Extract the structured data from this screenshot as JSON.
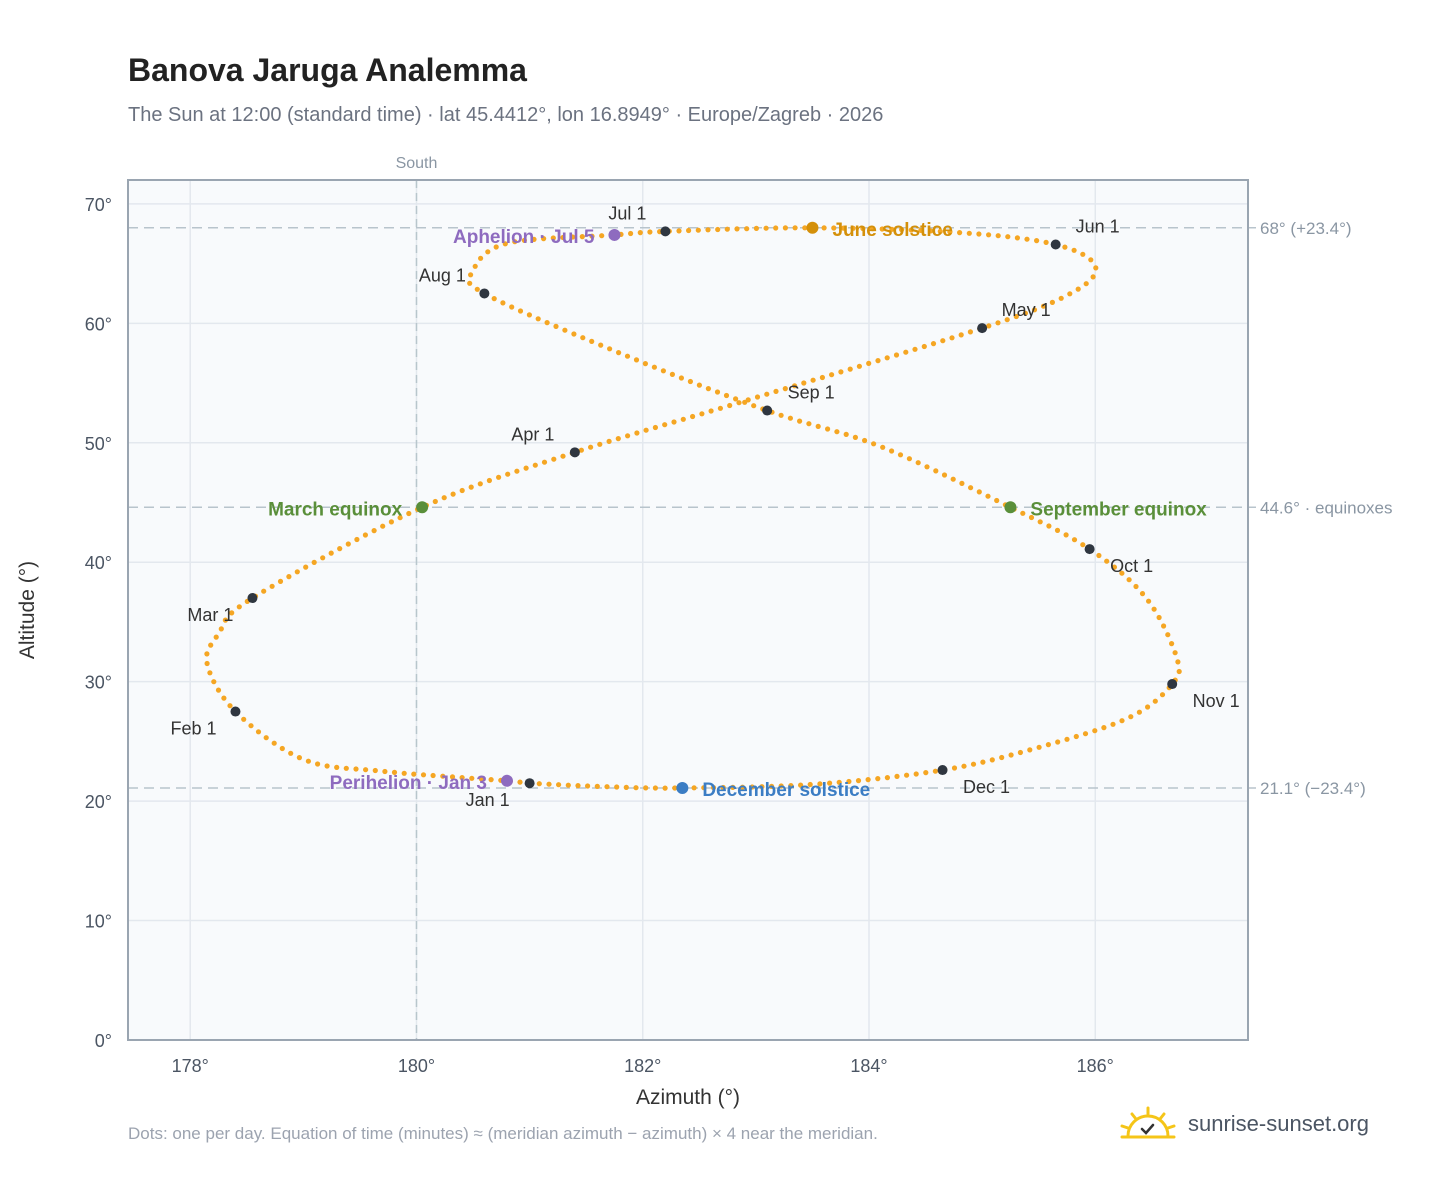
{
  "title": "Banova Jaruga Analemma",
  "subtitle": "The Sun at 12:00 (standard time) · lat 45.4412°, lon 16.8949° · Europe/Zagreb · 2026",
  "footer": "Dots: one per day. Equation of time (minutes) ≈ (meridian azimuth − azimuth) × 4 near the meridian.",
  "brand": {
    "name": "sunrise-sunset.org",
    "icon": "sun-logo-icon"
  },
  "chart_data": {
    "type": "scatter",
    "title": "Banova Jaruga Analemma",
    "xlabel": "Azimuth (°)",
    "ylabel": "Altitude (°)",
    "xlim": [
      177.45,
      187.35
    ],
    "ylim": [
      0,
      72
    ],
    "x_ticks": [
      178,
      180,
      182,
      184,
      186
    ],
    "x_tick_labels": [
      "178°",
      "180°",
      "182°",
      "184°",
      "186°"
    ],
    "y_ticks": [
      0,
      10,
      20,
      30,
      40,
      50,
      60,
      70
    ],
    "y_tick_labels": [
      "0°",
      "10°",
      "20°",
      "30°",
      "40°",
      "50°",
      "60°",
      "70°"
    ],
    "grid": true,
    "meridian": {
      "azimuth": 180,
      "label": "South"
    },
    "reference_lines": [
      {
        "altitude": 68.0,
        "label": "68° (+23.4°)"
      },
      {
        "altitude": 44.6,
        "label": "44.6° · equinoxes"
      },
      {
        "altitude": 21.1,
        "label": "21.1° (−23.4°)"
      }
    ],
    "series_color": "#f5a623",
    "path_waypoints": [
      [
        181.0,
        21.5
      ],
      [
        180.8,
        21.7
      ],
      [
        179.7,
        22.5
      ],
      [
        179.0,
        23.5
      ],
      [
        178.4,
        27.5
      ],
      [
        178.15,
        31.5
      ],
      [
        178.25,
        34.0
      ],
      [
        178.55,
        37.0
      ],
      [
        180.05,
        44.6
      ],
      [
        181.4,
        49.2
      ],
      [
        182.9,
        53.5
      ],
      [
        185.0,
        59.6
      ],
      [
        185.8,
        62.6
      ],
      [
        186.0,
        64.8
      ],
      [
        185.65,
        66.6
      ],
      [
        184.8,
        67.6
      ],
      [
        183.5,
        68.0
      ],
      [
        182.2,
        67.7
      ],
      [
        181.75,
        67.4
      ],
      [
        180.8,
        66.7
      ],
      [
        180.5,
        64.4
      ],
      [
        180.6,
        62.5
      ],
      [
        181.8,
        57.5
      ],
      [
        183.1,
        52.7
      ],
      [
        184.1,
        49.7
      ],
      [
        185.25,
        44.6
      ],
      [
        185.95,
        41.1
      ],
      [
        186.45,
        37.0
      ],
      [
        186.72,
        32.0
      ],
      [
        186.68,
        29.8
      ],
      [
        186.3,
        27.0
      ],
      [
        185.5,
        24.5
      ],
      [
        184.65,
        22.6
      ],
      [
        183.5,
        21.4
      ],
      [
        182.35,
        21.1
      ],
      [
        181.7,
        21.2
      ],
      [
        181.0,
        21.5
      ]
    ],
    "month_markers": [
      {
        "label": "Jan 1",
        "az": 181.0,
        "alt": 21.5,
        "lx": -42,
        "ly": 23,
        "anchor": "middle"
      },
      {
        "label": "Feb 1",
        "az": 178.4,
        "alt": 27.5,
        "lx": -42,
        "ly": 23,
        "anchor": "middle"
      },
      {
        "label": "Mar 1",
        "az": 178.55,
        "alt": 37.0,
        "lx": -42,
        "ly": 23,
        "anchor": "middle"
      },
      {
        "label": "Apr 1",
        "az": 181.4,
        "alt": 49.2,
        "lx": -42,
        "ly": -12,
        "anchor": "middle"
      },
      {
        "label": "May 1",
        "az": 185.0,
        "alt": 59.6,
        "lx": 44,
        "ly": -12,
        "anchor": "middle"
      },
      {
        "label": "Jun 1",
        "az": 185.65,
        "alt": 66.6,
        "lx": 42,
        "ly": -12,
        "anchor": "middle"
      },
      {
        "label": "Jul 1",
        "az": 182.2,
        "alt": 67.7,
        "lx": -38,
        "ly": -12,
        "anchor": "middle"
      },
      {
        "label": "Aug 1",
        "az": 180.6,
        "alt": 62.5,
        "lx": -42,
        "ly": -12,
        "anchor": "middle"
      },
      {
        "label": "Sep 1",
        "az": 183.1,
        "alt": 52.7,
        "lx": 44,
        "ly": -12,
        "anchor": "middle"
      },
      {
        "label": "Oct 1",
        "az": 185.95,
        "alt": 41.1,
        "lx": 42,
        "ly": 23,
        "anchor": "middle"
      },
      {
        "label": "Nov 1",
        "az": 186.68,
        "alt": 29.8,
        "lx": 44,
        "ly": 23,
        "anchor": "middle"
      },
      {
        "label": "Dec 1",
        "az": 184.65,
        "alt": 22.6,
        "lx": 44,
        "ly": 23,
        "anchor": "middle"
      }
    ],
    "events": [
      {
        "label": "June solstice",
        "az": 183.5,
        "alt": 68.0,
        "color": "#d4900a",
        "lx": 20,
        "ly": 8,
        "anchor": "start"
      },
      {
        "label": "December solstice",
        "az": 182.35,
        "alt": 21.1,
        "color": "#3b7dc4",
        "lx": 20,
        "ly": 8,
        "anchor": "start"
      },
      {
        "label": "March equinox",
        "az": 180.05,
        "alt": 44.6,
        "color": "#5a8f3a",
        "lx": -20,
        "ly": 8,
        "anchor": "end"
      },
      {
        "label": "September equinox",
        "az": 185.25,
        "alt": 44.6,
        "color": "#5a8f3a",
        "lx": 20,
        "ly": 8,
        "anchor": "start"
      },
      {
        "label": "Aphelion · Jul 5",
        "az": 181.75,
        "alt": 67.4,
        "color": "#8e6bbf",
        "lx": -20,
        "ly": 8,
        "anchor": "end"
      },
      {
        "label": "Perihelion · Jan 3",
        "az": 180.8,
        "alt": 21.7,
        "color": "#8e6bbf",
        "lx": -20,
        "ly": 8,
        "anchor": "end"
      }
    ]
  }
}
